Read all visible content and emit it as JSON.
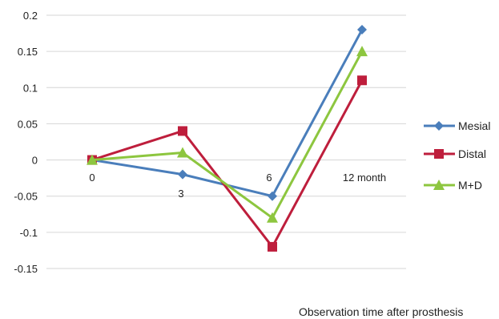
{
  "chart_data": {
    "type": "line",
    "categories": [
      "0",
      "3",
      "6",
      "12 month"
    ],
    "series": [
      {
        "name": "Mesial",
        "values": [
          0,
          -0.02,
          -0.05,
          0.18
        ],
        "color": "#4a7ebb",
        "marker": "diamond"
      },
      {
        "name": "Distal",
        "values": [
          0,
          0.04,
          -0.12,
          0.11
        ],
        "color": "#be1e3c",
        "marker": "square"
      },
      {
        "name": "M+D",
        "values": [
          0,
          0.01,
          -0.08,
          0.15
        ],
        "color": "#8dc63f",
        "marker": "triangle"
      }
    ],
    "yticks": [
      "0.2",
      "0.15",
      "0.1",
      "0.05",
      "0",
      "-0.05",
      "-0.1",
      "-0.15"
    ],
    "ylim": [
      -0.15,
      0.2
    ],
    "grid": true,
    "legend_position": "right",
    "xlabel": "Observation time after prosthesis"
  }
}
